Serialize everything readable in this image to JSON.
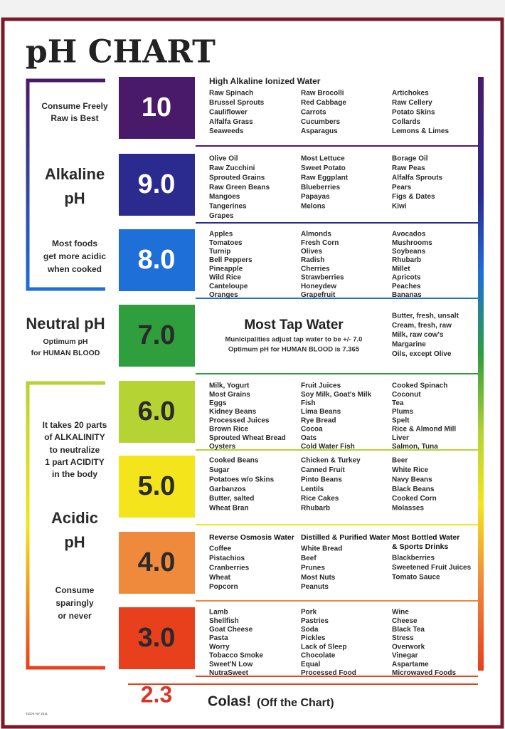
{
  "title": "pH CHART",
  "left_notes": [
    "Consume Freely",
    "Raw is Best",
    "Alkaline",
    "pH",
    "Most foods",
    "get more acidic",
    "when cooked",
    "Neutral pH",
    "Optimum pH",
    "for HUMAN BLOOD",
    "It takes 20 parts",
    "of ALKALINITY",
    "to neutralize",
    "1 part ACIDITY",
    "in the body",
    "Acidic",
    "pH",
    "Consume",
    "sparingly",
    "or never"
  ],
  "levels": [
    {
      "ph": "10",
      "color": "#4a1a6a",
      "heading": "High Alkaline Ionized Water",
      "columns": [
        {
          "items": [
            "Raw Spinach",
            "Brussel Sprouts",
            "Cauliflower",
            "Alfalfa Grass",
            "Seaweeds"
          ]
        },
        {
          "items": [
            "Raw Brocolli",
            "Red Cabbage",
            "Carrots",
            "Cucumbers",
            "Asparagus"
          ]
        },
        {
          "items": [
            "Artichokes",
            "Raw Cellery",
            "Potato Skins",
            "Collards",
            "Lemons & Limes"
          ]
        }
      ]
    },
    {
      "ph": "9.0",
      "color": "#2b2b8f",
      "columns": [
        {
          "items": [
            "Olive Oil",
            "Raw Zucchini",
            "Sprouted Grains",
            "Raw Green Beans",
            "Mangoes",
            "Tangerines",
            "Grapes"
          ]
        },
        {
          "items": [
            "Most Lettuce",
            "Sweet Potato",
            "Raw Eggplant",
            "Blueberries",
            "Papayas",
            "Melons"
          ]
        },
        {
          "items": [
            "Borage Oil",
            "Raw Peas",
            "Alfalfa Sprouts",
            "Pears",
            "Figs & Dates",
            "Kiwi"
          ]
        }
      ]
    },
    {
      "ph": "8.0",
      "color": "#1e6fd8",
      "columns": [
        {
          "items": [
            "Apples",
            "Tomatoes",
            "Turnip",
            "Bell Peppers",
            "Pineapple",
            "Wild Rice",
            "Canteloupe",
            "Oranges"
          ]
        },
        {
          "items": [
            "Almonds",
            "Fresh Corn",
            "Olives",
            "Radish",
            "Cherries",
            "Strawberries",
            "Honeydew",
            "Grapefruit"
          ]
        },
        {
          "items": [
            "Avocados",
            "Mushrooms",
            "Soybeans",
            "Rhubarb",
            "Millet",
            "Apricots",
            "Peaches",
            "Bananas"
          ]
        }
      ]
    },
    {
      "ph": "7.0",
      "color": "#2f9e3c",
      "heading": "Most Tap Water",
      "note": [
        "Municipalities adjust tap water to be +/- 7.0",
        "Optimum pH for HUMAN BLOOD is 7.365"
      ],
      "side_items": [
        "Butter, fresh, unsalt",
        "Cream, fresh, raw",
        "Milk, raw cow's",
        "Margarine",
        "Oils, except Olive"
      ]
    },
    {
      "ph": "6.0",
      "color": "#b6d334",
      "columns": [
        {
          "items": [
            "Milk, Yogurt",
            "Most Grains",
            "Eggs",
            "Kidney Beans",
            "Processed Juices",
            "Brown Rice",
            "Sprouted Wheat Bread",
            "Oysters"
          ]
        },
        {
          "items": [
            "Fruit Juices",
            "Soy Milk, Goat's Milk",
            "Fish",
            "Lima Beans",
            "Rye Bread",
            "Cocoa",
            "Oats",
            "Cold Water Fish"
          ]
        },
        {
          "items": [
            "Cooked Spinach",
            "Coconut",
            "Tea",
            "Plums",
            "Spelt",
            "Rice & Almond Mill",
            "Liver",
            "Salmon, Tuna"
          ]
        }
      ]
    },
    {
      "ph": "5.0",
      "color": "#f4e41c",
      "columns": [
        {
          "items": [
            "Cooked Beans",
            "Sugar",
            "Potatoes w/o Skins",
            "Garbanzos",
            "Butter, salted",
            "Wheat Bran"
          ]
        },
        {
          "items": [
            "Chicken & Turkey",
            "Canned Fruit",
            "Pinto Beans",
            "Lentils",
            "Rice Cakes",
            "Rhubarb"
          ]
        },
        {
          "items": [
            "Beer",
            "White Rice",
            "Navy Beans",
            "Black Beans",
            "Cooked Corn",
            "Molasses"
          ]
        }
      ]
    },
    {
      "ph": "4.0",
      "color": "#ef8a3c",
      "columns": [
        {
          "heading": [
            "Reverse Osmosis Water"
          ],
          "items": [
            "Coffee",
            "Pistachios",
            "Cranberries",
            "Wheat",
            "Popcorn"
          ]
        },
        {
          "heading": [
            "Distilled & Purified Water"
          ],
          "items": [
            "White Bread",
            "Beef",
            "Prunes",
            "Most Nuts",
            "Peanuts"
          ]
        },
        {
          "heading": [
            "Most Bottled Water",
            "& Sports Drinks"
          ],
          "items": [
            "Blackberries",
            "Sweetened Fruit Juices",
            "Tomato Sauce"
          ]
        }
      ]
    },
    {
      "ph": "3.0",
      "color": "#e8401d",
      "columns": [
        {
          "items": [
            "Lamb",
            "Shellfish",
            "Goat Cheese",
            "Pasta",
            "Worry",
            "Tobacco Smoke",
            "Sweet'N Low",
            "NutraSweet"
          ]
        },
        {
          "items": [
            "Pork",
            "Pastries",
            "Soda",
            "Pickles",
            "Lack of Sleep",
            "Chocolate",
            "Equal",
            "Processed Food"
          ]
        },
        {
          "items": [
            "Wine",
            "Cheese",
            "Black Tea",
            "Stress",
            "Overwork",
            "Vinegar",
            "Aspartame",
            "Microwaved Foods"
          ]
        }
      ]
    }
  ],
  "footer": {
    "ph": "2.3",
    "label": "Colas!",
    "sublabel": "(Off the Chart)",
    "credit": "©ZOK NY 2011"
  }
}
